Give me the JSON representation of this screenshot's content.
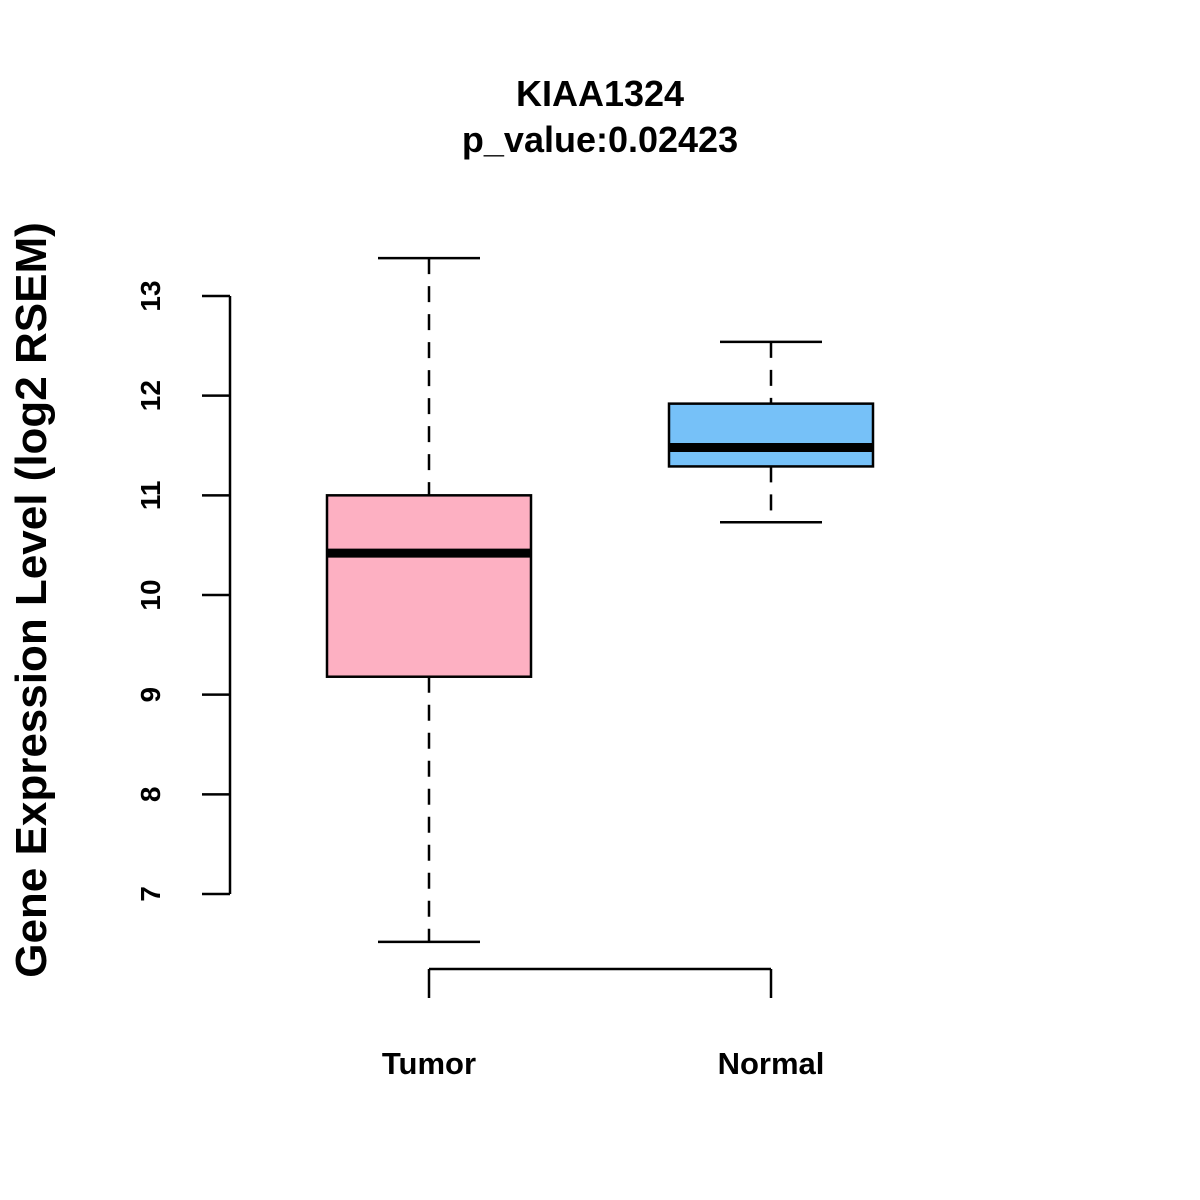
{
  "chart_data": {
    "type": "box",
    "title": "KIAA1324",
    "subtitle": "p_value:0.02423",
    "xlabel": "",
    "ylabel": "Gene Expression Level (log2 RSEM)",
    "ylim": [
      7,
      13
    ],
    "yticks": [
      "7",
      "8",
      "9",
      "10",
      "11",
      "12",
      "13"
    ],
    "grid": false,
    "categories": [
      "Tumor",
      "Normal"
    ],
    "series": [
      {
        "name": "Tumor",
        "whisker_low": 6.52,
        "q1": 9.18,
        "median": 10.42,
        "q3": 11.0,
        "whisker_high": 13.38,
        "fill": "#FDB0C2"
      },
      {
        "name": "Normal",
        "whisker_low": 10.73,
        "q1": 11.29,
        "median": 11.48,
        "q3": 11.92,
        "whisker_high": 12.54,
        "fill": "#76C1F8"
      }
    ]
  }
}
